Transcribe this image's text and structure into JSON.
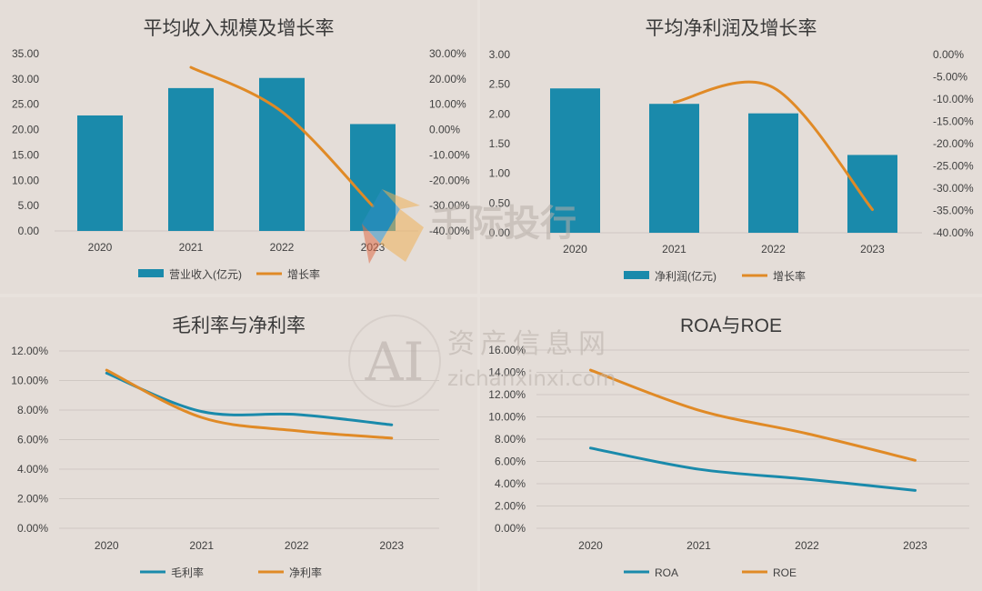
{
  "colors": {
    "bar": "#1a8aab",
    "growth": "#e08a26",
    "panel_bg": "#e4ddd8",
    "grid": "#cfc8c3",
    "axis_text": "#404040",
    "title_text": "#3a3a3a"
  },
  "watermarks": {
    "qianji": "千际投行",
    "ai_logo": "AI",
    "ai_site_cn": "资产信息网",
    "ai_site_url": "zichanxinxi.com"
  },
  "chart_data": [
    {
      "type": "bar",
      "title": "平均收入规模及增长率",
      "categories": [
        "2020",
        "2021",
        "2022",
        "2023"
      ],
      "series": [
        {
          "name": "营业收入(亿元)",
          "kind": "bar",
          "axis": "left",
          "values": [
            22.8,
            28.2,
            30.2,
            21.1
          ]
        },
        {
          "name": "增长率",
          "kind": "line",
          "axis": "right",
          "values": [
            null,
            24.6,
            7.1,
            -30.2
          ]
        }
      ],
      "ylim": [
        0,
        35
      ],
      "y_ticks": [
        "0.00",
        "5.00",
        "10.00",
        "15.00",
        "20.00",
        "25.00",
        "30.00",
        "35.00"
      ],
      "y2lim": [
        -40,
        30
      ],
      "y2_ticks": [
        "-40.00%",
        "-30.00%",
        "-20.00%",
        "-10.00%",
        "0.00%",
        "10.00%",
        "20.00%",
        "30.00%"
      ],
      "legend": "bottom",
      "grid": false
    },
    {
      "type": "bar",
      "title": "平均净利润及增长率",
      "categories": [
        "2020",
        "2021",
        "2022",
        "2023"
      ],
      "series": [
        {
          "name": "净利润(亿元)",
          "kind": "bar",
          "axis": "left",
          "values": [
            2.43,
            2.17,
            2.01,
            1.31
          ]
        },
        {
          "name": "增长率",
          "kind": "line",
          "axis": "right",
          "values": [
            null,
            -10.7,
            -7.4,
            -34.8
          ]
        }
      ],
      "ylim": [
        0,
        3
      ],
      "y_ticks": [
        "0.00",
        "0.50",
        "1.00",
        "1.50",
        "2.00",
        "2.50",
        "3.00"
      ],
      "y2lim": [
        -40,
        0
      ],
      "y2_ticks": [
        "-40.00%",
        "-35.00%",
        "-30.00%",
        "-25.00%",
        "-20.00%",
        "-15.00%",
        "-10.00%",
        "-5.00%",
        "0.00%"
      ],
      "legend": "bottom",
      "grid": false
    },
    {
      "type": "line",
      "title": "毛利率与净利率",
      "categories": [
        "2020",
        "2021",
        "2022",
        "2023"
      ],
      "series": [
        {
          "name": "毛利率",
          "values": [
            10.5,
            7.9,
            7.7,
            7.0
          ]
        },
        {
          "name": "净利率",
          "values": [
            10.7,
            7.5,
            6.6,
            6.1
          ]
        }
      ],
      "ylim": [
        0,
        12
      ],
      "y_ticks": [
        "0.00%",
        "2.00%",
        "4.00%",
        "6.00%",
        "8.00%",
        "10.00%",
        "12.00%"
      ],
      "legend": "bottom",
      "grid": true
    },
    {
      "type": "line",
      "title": "ROA与ROE",
      "categories": [
        "2020",
        "2021",
        "2022",
        "2023"
      ],
      "series": [
        {
          "name": "ROA",
          "values": [
            7.2,
            5.3,
            4.4,
            3.4
          ]
        },
        {
          "name": "ROE",
          "values": [
            14.2,
            10.6,
            8.5,
            6.1
          ]
        }
      ],
      "ylim": [
        0,
        16
      ],
      "y_ticks": [
        "0.00%",
        "2.00%",
        "4.00%",
        "6.00%",
        "8.00%",
        "10.00%",
        "12.00%",
        "14.00%",
        "16.00%"
      ],
      "legend": "bottom",
      "grid": true
    }
  ]
}
